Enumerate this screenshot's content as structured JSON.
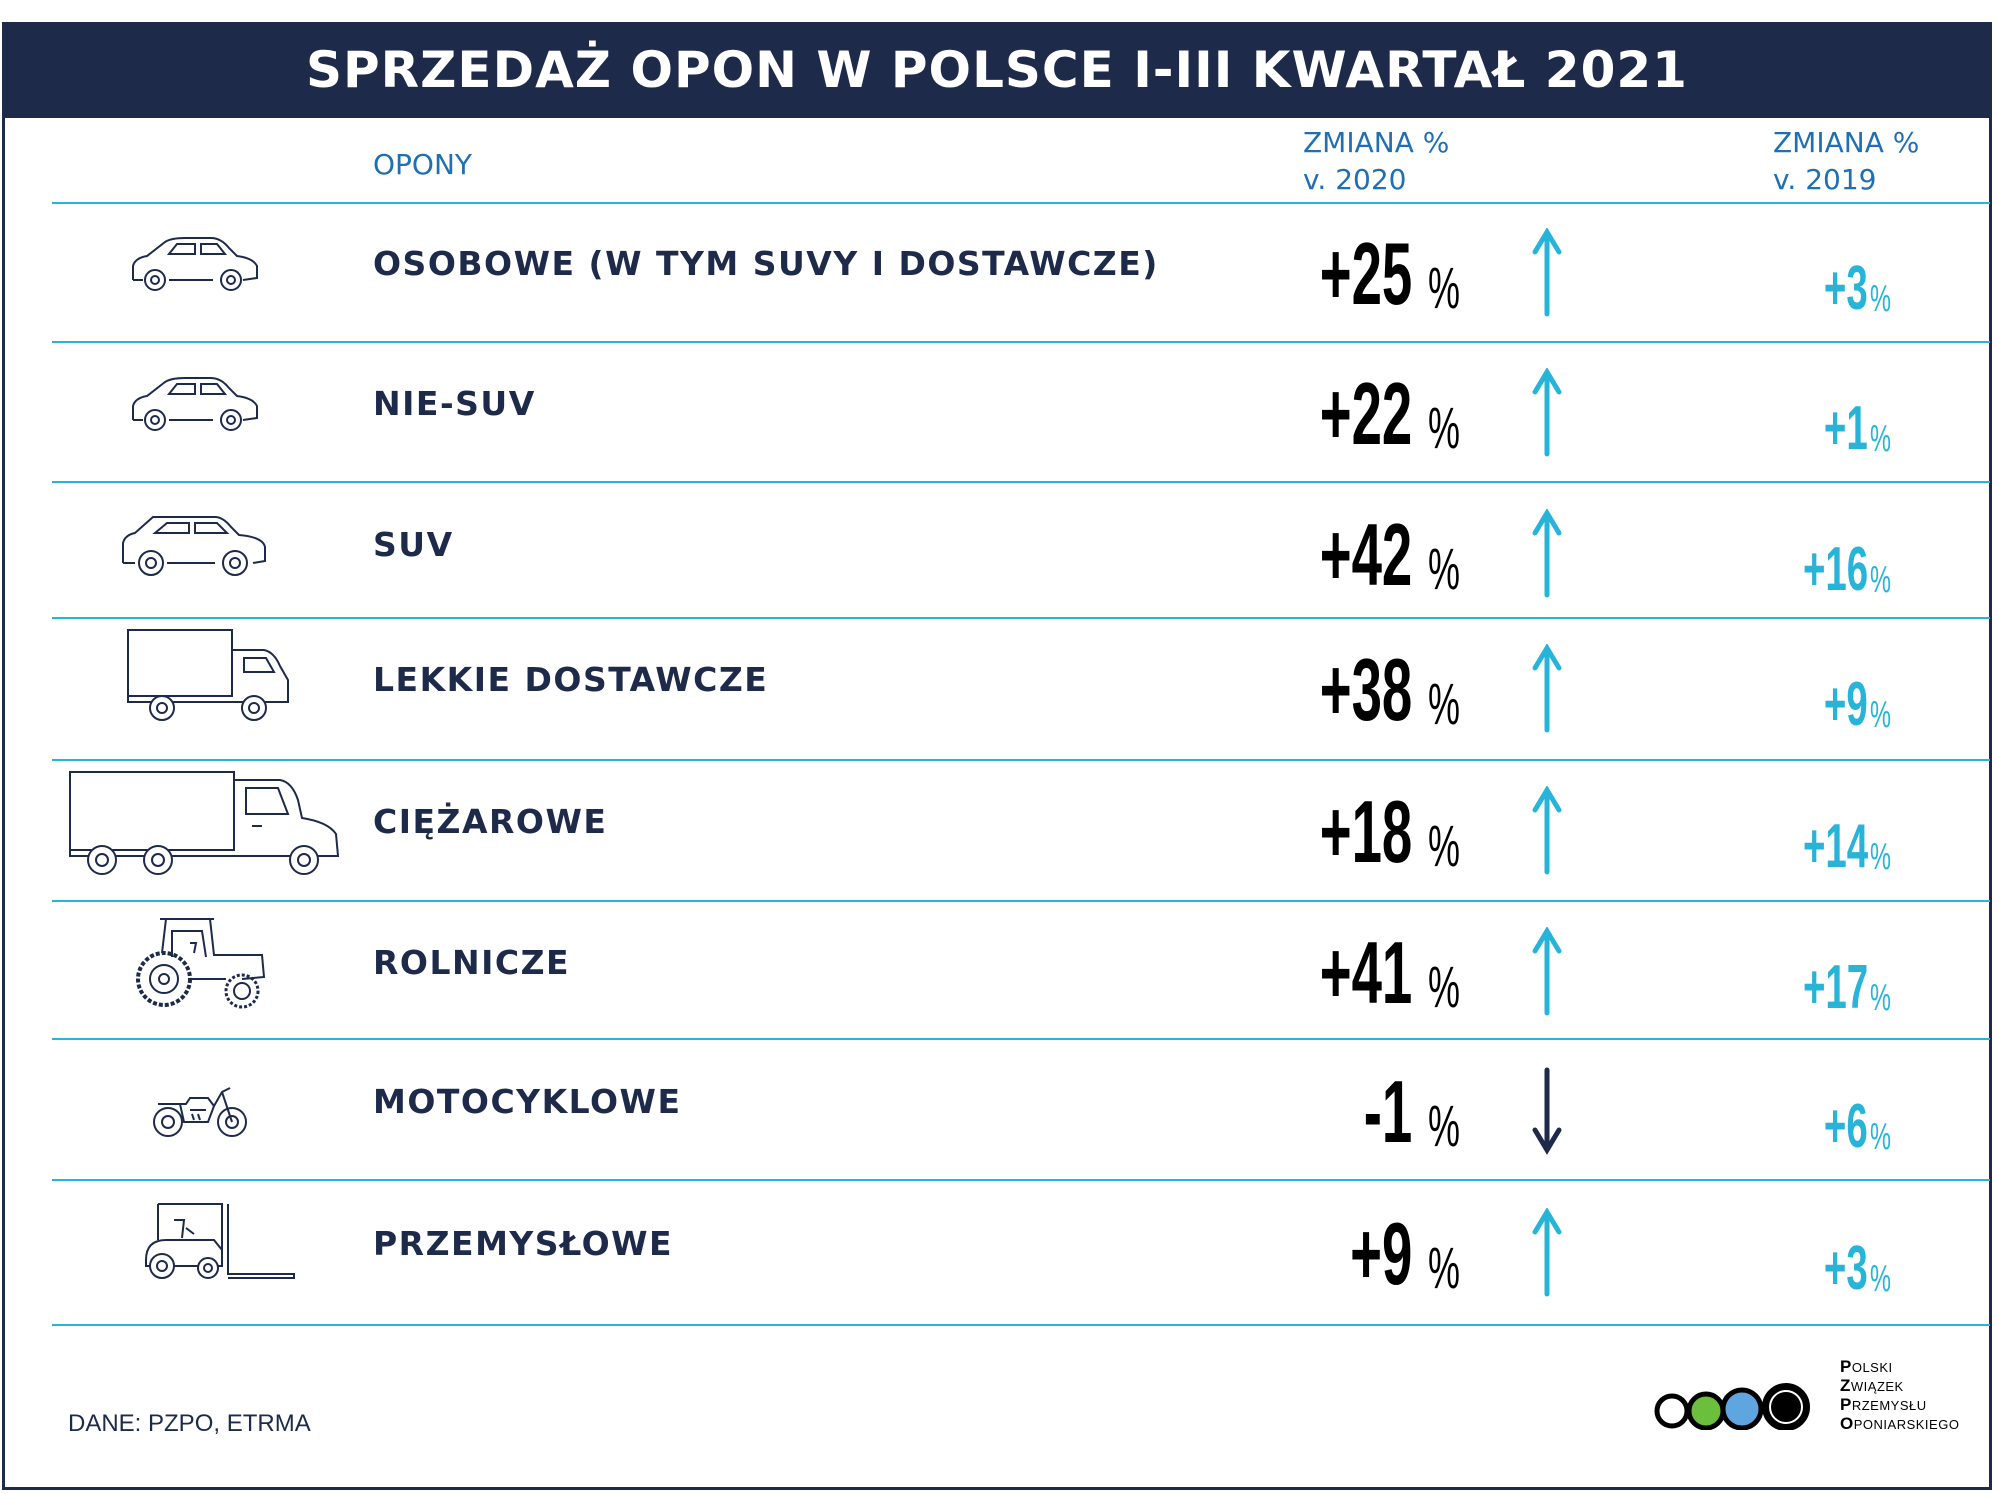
{
  "title": "SPRZEDAŻ OPON W POLSCE I-III KWARTAŁ 2021",
  "headers": {
    "col_tyres": "OPONY",
    "col_2020_line1": "ZMIANA %",
    "col_2020_line2": "v. 2020",
    "col_2019_line1": "ZMIANA %",
    "col_2019_line2": "v. 2019"
  },
  "colors": {
    "navy": "#1e2a4a",
    "cyan": "#27b4d8",
    "header_blue": "#1f6fb2"
  },
  "chart_data": {
    "type": "table",
    "title": "SPRZEDAŻ OPON W POLSCE I-III KWARTAŁ 2021",
    "columns": [
      "OPONY",
      "ZMIANA % v. 2020",
      "ZMIANA % v. 2019"
    ],
    "rows": [
      {
        "icon": "car-icon",
        "label": "OSOBOWE (W TYM SUVY I DOSTAWCZE)",
        "v2020": "+25",
        "v2019": "+3",
        "trend": "up"
      },
      {
        "icon": "car-icon",
        "label": "NIE-SUV",
        "v2020": "+22",
        "v2019": "+1",
        "trend": "up"
      },
      {
        "icon": "suv-icon",
        "label": "SUV",
        "v2020": "+42",
        "v2019": "+16",
        "trend": "up"
      },
      {
        "icon": "van-icon",
        "label": "LEKKIE DOSTAWCZE",
        "v2020": "+38",
        "v2019": "+9",
        "trend": "up"
      },
      {
        "icon": "truck-icon",
        "label": "CIĘŻAROWE",
        "v2020": "+18",
        "v2019": "+14",
        "trend": "up"
      },
      {
        "icon": "tractor-icon",
        "label": "ROLNICZE",
        "v2020": "+41",
        "v2019": "+17",
        "trend": "up"
      },
      {
        "icon": "motorcycle-icon",
        "label": "MOTOCYKLOWE",
        "v2020": "-1",
        "v2019": "+6",
        "trend": "down"
      },
      {
        "icon": "forklift-icon",
        "label": "PRZEMYSŁOWE",
        "v2020": "+9",
        "v2019": "+3",
        "trend": "up"
      }
    ],
    "unit": "%"
  },
  "source": "DANE: PZPO, ETRMA",
  "logo": {
    "lines": [
      {
        "initial": "P",
        "rest": "OLSKI"
      },
      {
        "initial": "Z",
        "rest": "WIĄZEK"
      },
      {
        "initial": "P",
        "rest": "RZEMYSŁU"
      },
      {
        "initial": "O",
        "rest": "PONIARSKIEGO"
      }
    ]
  }
}
